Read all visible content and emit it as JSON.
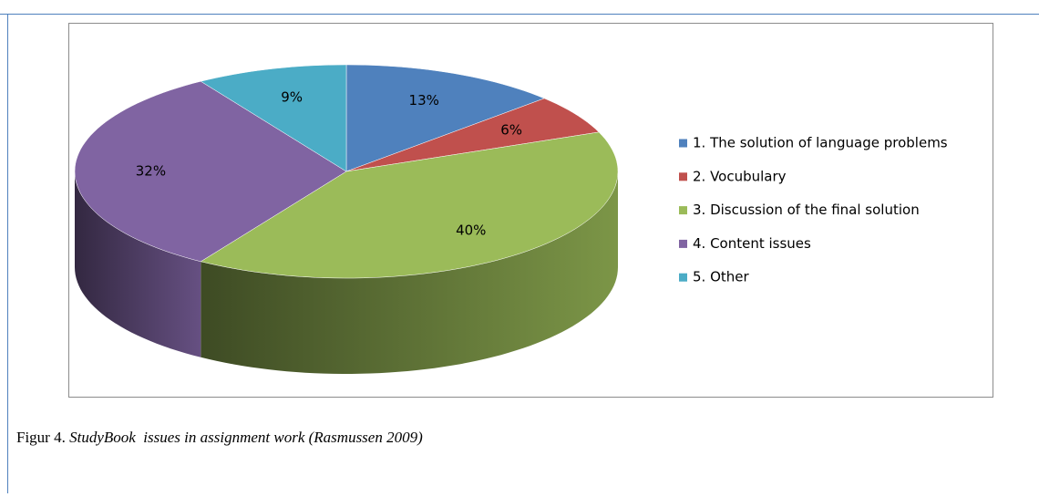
{
  "chart_data": {
    "type": "pie",
    "categories": [
      "1. The solution of language problems",
      "2. Vocubulary",
      "3. Discussion of the final solution",
      "4. Content issues",
      "5. Other"
    ],
    "values": [
      13,
      6,
      40,
      32,
      9
    ],
    "value_labels": [
      "13%",
      "6%",
      "40%",
      "32%",
      "9%"
    ],
    "colors": [
      "#4f81bd",
      "#c0504d",
      "#9bbb59",
      "#8064a2",
      "#4bacc6"
    ],
    "legend": "right"
  },
  "caption": {
    "label": "Figur 4.",
    "text": "StudyBook  issues in assignment work (Rasmussen 2009)"
  }
}
